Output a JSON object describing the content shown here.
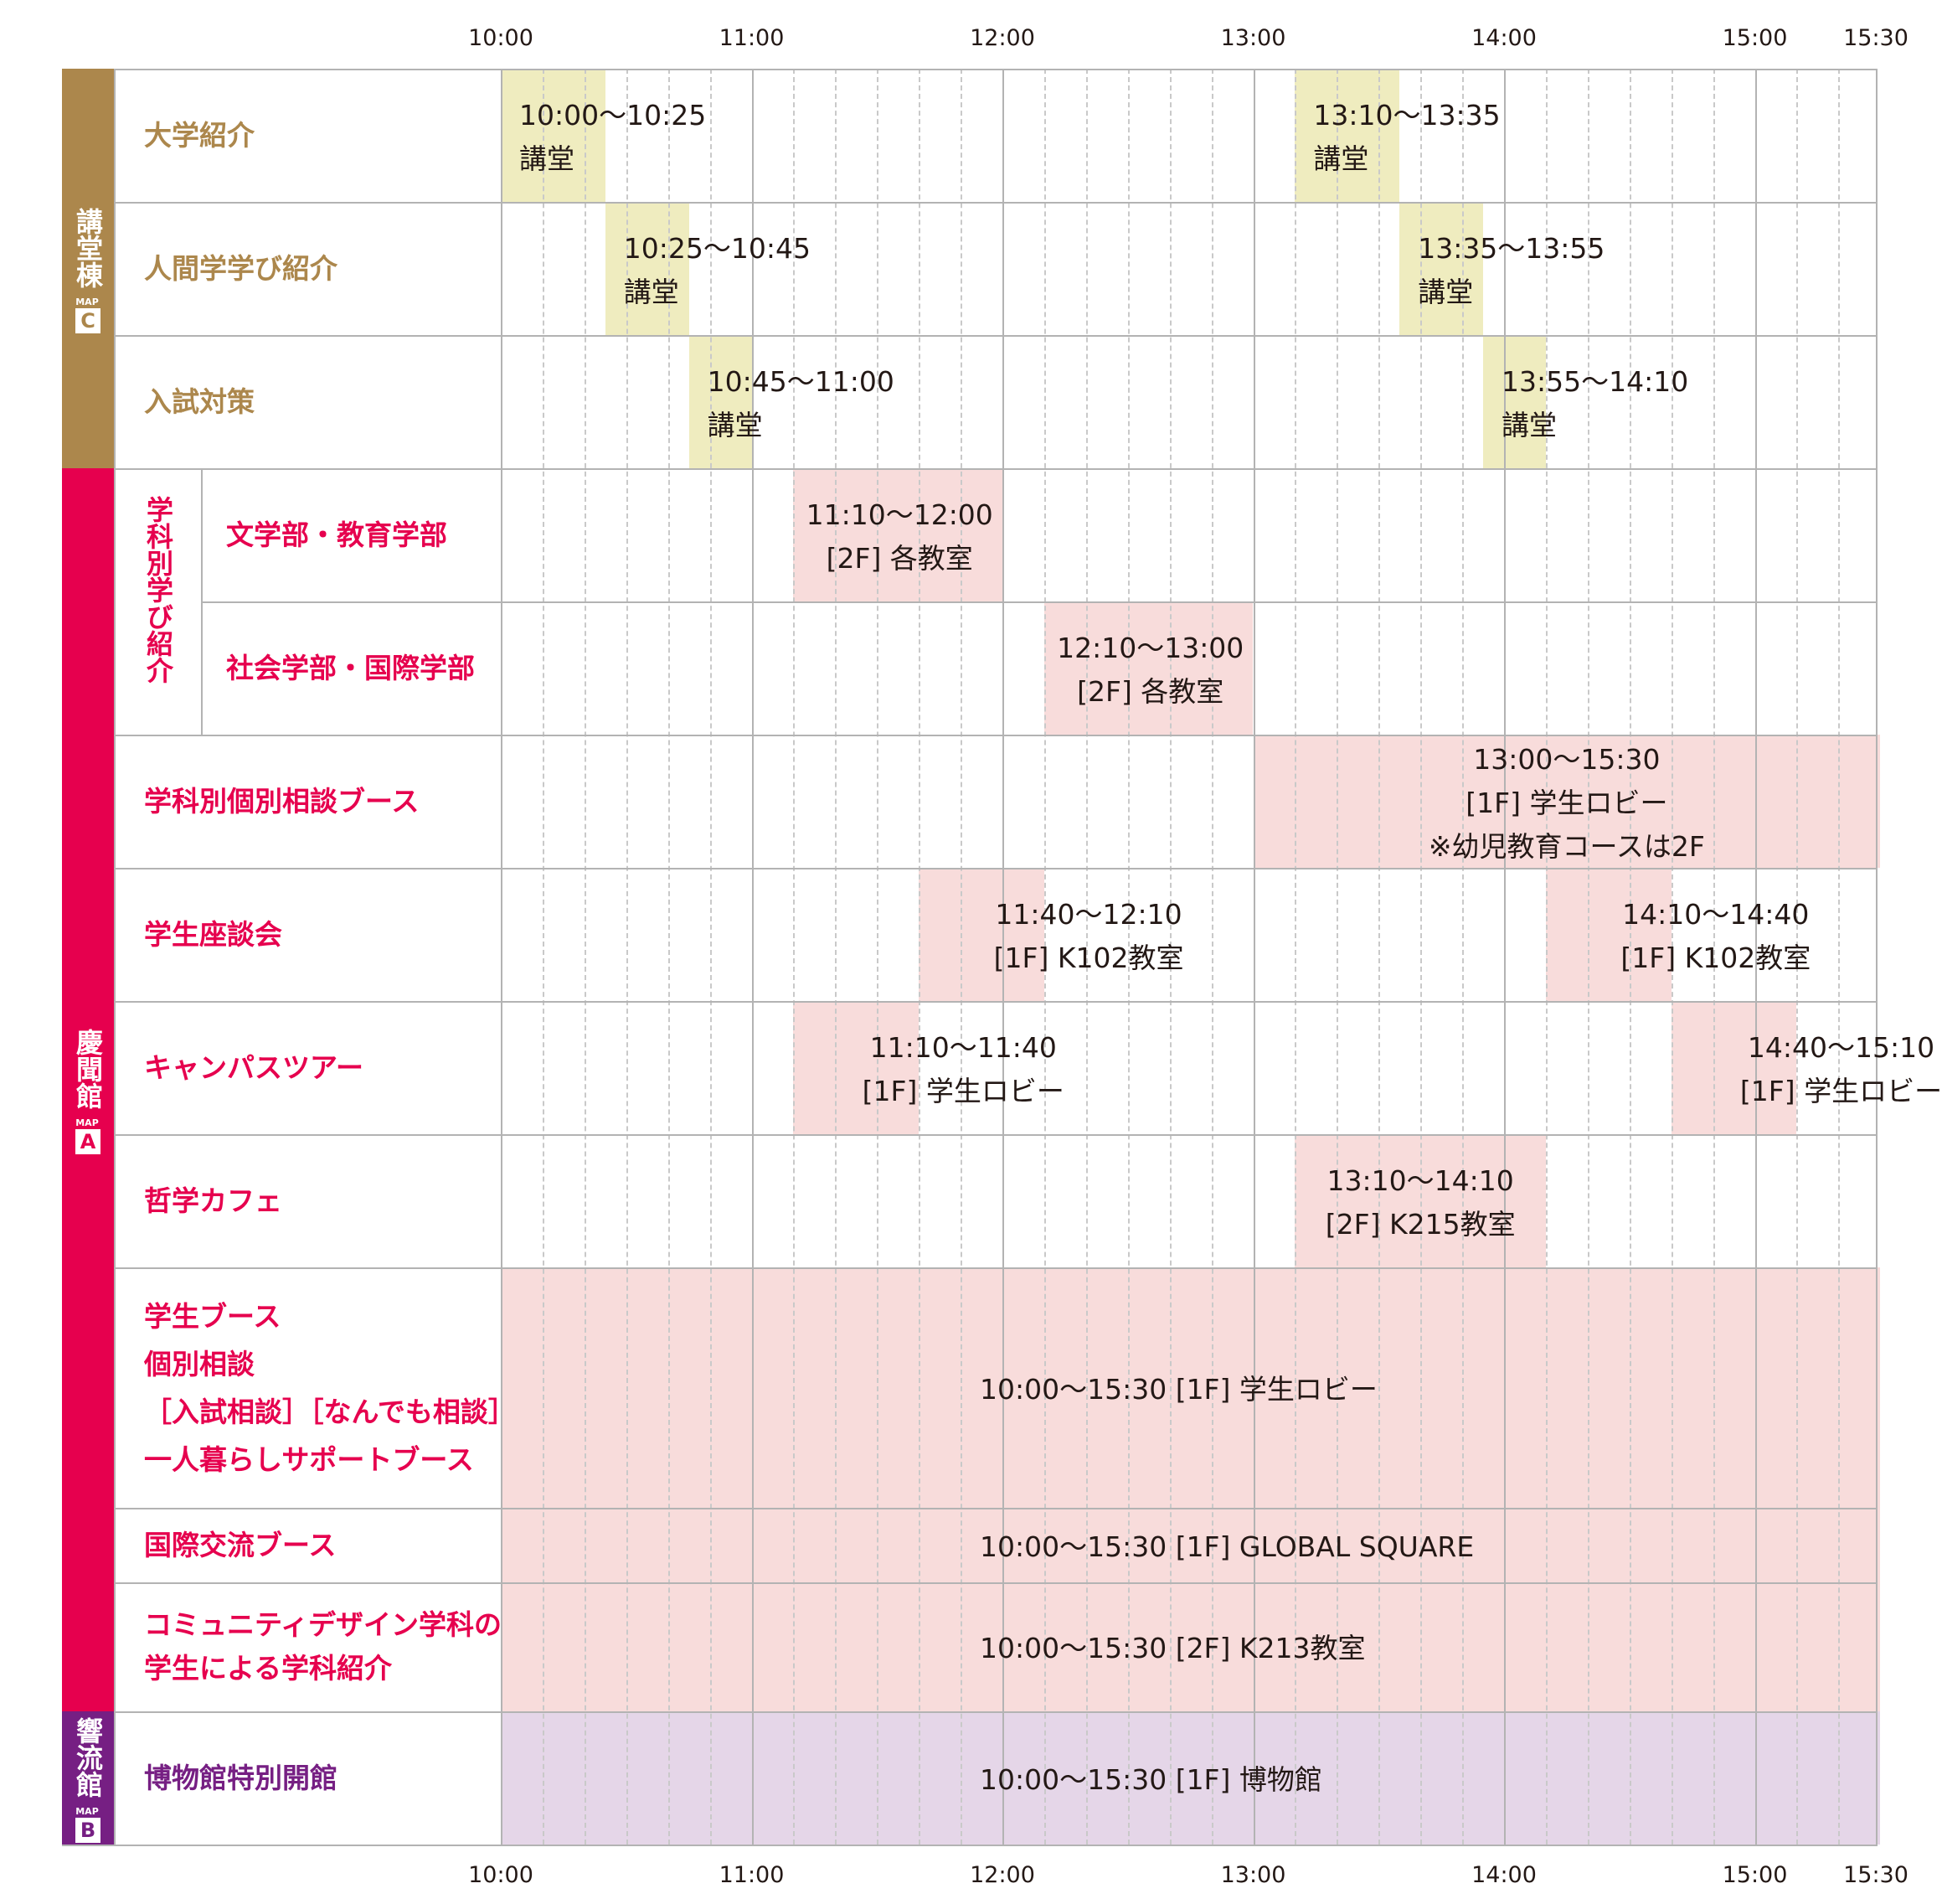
{
  "time_axis": {
    "ticks": [
      "10:00",
      "11:00",
      "12:00",
      "13:00",
      "14:00",
      "15:00",
      "15:30"
    ]
  },
  "colors": {
    "gold": "#ac874c",
    "red": "#e6004e",
    "purple": "#761f83",
    "lecture_fill": "#efecbf",
    "pink_fill": "#f8dcdb",
    "purple_fill": "#e5d6e8"
  },
  "buildings": [
    {
      "name": "講堂棟",
      "map_label": "MAP",
      "map_letter": "C"
    },
    {
      "name": "慶聞館",
      "map_label": "MAP",
      "map_letter": "A"
    },
    {
      "name": "響流館",
      "map_label": "MAP",
      "map_letter": "B"
    }
  ],
  "subcategory": "学科別学び紹介",
  "rows": [
    {
      "label": [
        "大学紹介"
      ],
      "events": [
        {
          "start": "10:00",
          "end": "10:25",
          "lines": [
            "10:00〜10:25",
            "講堂"
          ]
        },
        {
          "start": "13:10",
          "end": "13:35",
          "lines": [
            "13:10〜13:35",
            "講堂"
          ]
        }
      ]
    },
    {
      "label": [
        "人間学学び紹介"
      ],
      "events": [
        {
          "start": "10:25",
          "end": "10:45",
          "lines": [
            "10:25〜10:45",
            "講堂"
          ]
        },
        {
          "start": "13:35",
          "end": "13:55",
          "lines": [
            "13:35〜13:55",
            "講堂"
          ]
        }
      ]
    },
    {
      "label": [
        "入試対策"
      ],
      "events": [
        {
          "start": "10:45",
          "end": "11:00",
          "lines": [
            "10:45〜11:00",
            "講堂"
          ]
        },
        {
          "start": "13:55",
          "end": "14:10",
          "lines": [
            "13:55〜14:10",
            "講堂"
          ]
        }
      ]
    },
    {
      "label": [
        "文学部・教育学部"
      ],
      "events": [
        {
          "start": "11:10",
          "end": "12:00",
          "lines": [
            "11:10〜12:00",
            "[2F] 各教室"
          ]
        }
      ]
    },
    {
      "label": [
        "社会学部・国際学部"
      ],
      "events": [
        {
          "start": "12:10",
          "end": "13:00",
          "lines": [
            "12:10〜13:00",
            "[2F] 各教室"
          ]
        }
      ]
    },
    {
      "label": [
        "学科別個別相談ブース"
      ],
      "events": [
        {
          "start": "13:00",
          "end": "15:30",
          "lines": [
            "13:00〜15:30",
            "[1F] 学生ロビー",
            "※幼児教育コースは2F"
          ]
        }
      ]
    },
    {
      "label": [
        "学生座談会"
      ],
      "events": [
        {
          "start": "11:40",
          "end": "12:10",
          "lines": [
            "11:40〜12:10",
            "[1F] K102教室"
          ]
        },
        {
          "start": "14:10",
          "end": "14:40",
          "lines": [
            "14:10〜14:40",
            "[1F] K102教室"
          ]
        }
      ]
    },
    {
      "label": [
        "キャンパスツアー"
      ],
      "events": [
        {
          "start": "11:10",
          "end": "11:40",
          "lines": [
            "11:10〜11:40",
            "[1F] 学生ロビー"
          ]
        },
        {
          "start": "14:40",
          "end": "15:10",
          "lines": [
            "14:40〜15:10",
            "[1F] 学生ロビー"
          ]
        }
      ]
    },
    {
      "label": [
        "哲学カフェ"
      ],
      "events": [
        {
          "start": "13:10",
          "end": "14:10",
          "lines": [
            "13:10〜14:10",
            "[2F] K215教室"
          ]
        }
      ]
    },
    {
      "label": [
        "学生ブース",
        "個別相談",
        "［入試相談］［なんでも相談］",
        "一人暮らしサポートブース"
      ],
      "events": [
        {
          "start": "10:00",
          "end": "15:30",
          "lines": [
            "10:00〜15:30  [1F] 学生ロビー"
          ]
        }
      ]
    },
    {
      "label": [
        "国際交流ブース"
      ],
      "events": [
        {
          "start": "10:00",
          "end": "15:30",
          "lines": [
            "10:00〜15:30  [1F] GLOBAL SQUARE"
          ]
        }
      ]
    },
    {
      "label": [
        "コミュニティデザイン学科の",
        "学生による学科紹介"
      ],
      "events": [
        {
          "start": "10:00",
          "end": "15:30",
          "lines": [
            "10:00〜15:30  [2F] K213教室"
          ]
        }
      ]
    },
    {
      "label": [
        "博物館特別開館"
      ],
      "events": [
        {
          "start": "10:00",
          "end": "15:30",
          "lines": [
            "10:00〜15:30  [1F] 博物館"
          ]
        }
      ]
    }
  ]
}
